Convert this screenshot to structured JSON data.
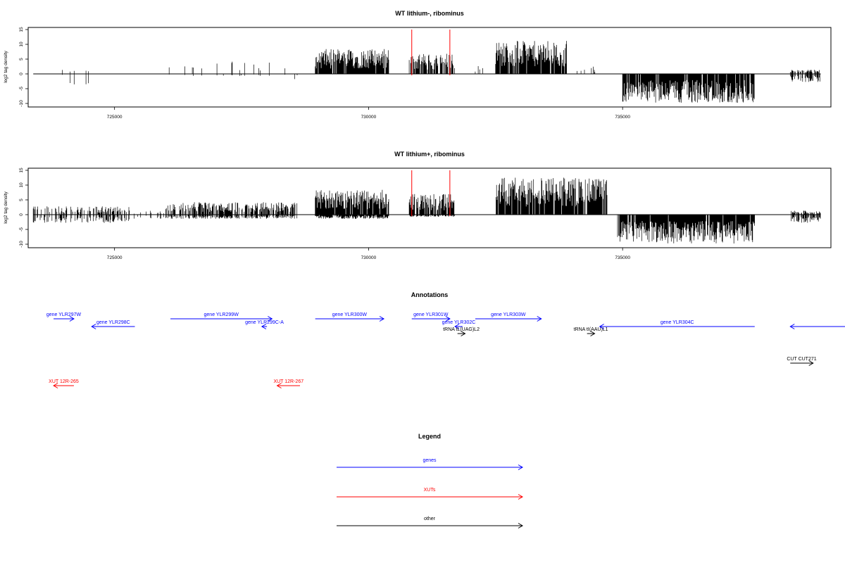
{
  "colors": {
    "gene": "#0000ff",
    "xut": "#ff0000",
    "other": "#000000",
    "marker": "#ff0000",
    "bars": "#000000"
  },
  "chart_data": [
    {
      "type": "bar",
      "title": "WT lithium-, ribominus",
      "ylabel": "log2 tag density",
      "xlim": [
        723300,
        739100
      ],
      "ylim": [
        -10,
        15
      ],
      "yticks": [
        -10,
        -5,
        0,
        5,
        10,
        15
      ],
      "xticks": [
        725000,
        730000,
        735000
      ],
      "grid": false,
      "markers": [
        730850,
        731600
      ],
      "segments": [
        {
          "start": 723400,
          "end": 724000,
          "density": 0.08,
          "pos": 3,
          "neg": 1
        },
        {
          "start": 724050,
          "end": 724600,
          "density": 0.08,
          "pos": 1,
          "neg": 3
        },
        {
          "start": 725900,
          "end": 728400,
          "density": 0.06,
          "pos": 3,
          "neg": 0.5
        },
        {
          "start": 728400,
          "end": 728600,
          "density": 0.05,
          "pos": 0.5,
          "neg": 1.5
        },
        {
          "start": 728950,
          "end": 730400,
          "density": 0.95,
          "pos": 6,
          "neg": 0
        },
        {
          "start": 730800,
          "end": 731700,
          "density": 0.8,
          "pos": 5,
          "neg": 0
        },
        {
          "start": 732100,
          "end": 732300,
          "density": 0.08,
          "pos": 2,
          "neg": 0
        },
        {
          "start": 732500,
          "end": 733900,
          "density": 1,
          "pos": 8,
          "neg": 0
        },
        {
          "start": 733900,
          "end": 734800,
          "density": 0.1,
          "pos": 2,
          "neg": 0
        },
        {
          "start": 735000,
          "end": 737600,
          "density": 1,
          "pos": 0,
          "neg": 7
        },
        {
          "start": 738300,
          "end": 738900,
          "density": 0.6,
          "pos": 1,
          "neg": 2
        }
      ]
    },
    {
      "type": "bar",
      "title": "WT lithium+, ribominus",
      "ylabel": "log2 tag density",
      "xlim": [
        723300,
        739100
      ],
      "ylim": [
        -10,
        15
      ],
      "yticks": [
        -10,
        -5,
        0,
        5,
        10,
        15
      ],
      "xticks": [
        725000,
        730000,
        735000
      ],
      "grid": false,
      "markers": [
        730850,
        731600
      ],
      "segments": [
        {
          "start": 723400,
          "end": 725300,
          "density": 0.45,
          "pos": 2,
          "neg": 2
        },
        {
          "start": 725300,
          "end": 726000,
          "density": 0.15,
          "pos": 1,
          "neg": 1
        },
        {
          "start": 726000,
          "end": 728600,
          "density": 0.7,
          "pos": 3,
          "neg": 1
        },
        {
          "start": 728950,
          "end": 730400,
          "density": 1,
          "pos": 6,
          "neg": 1
        },
        {
          "start": 730800,
          "end": 731700,
          "density": 0.85,
          "pos": 5,
          "neg": 0.5
        },
        {
          "start": 732500,
          "end": 734700,
          "density": 1,
          "pos": 9,
          "neg": 0
        },
        {
          "start": 734900,
          "end": 737600,
          "density": 1,
          "pos": 0,
          "neg": 7
        },
        {
          "start": 738300,
          "end": 738900,
          "density": 0.65,
          "pos": 1,
          "neg": 2
        }
      ]
    }
  ],
  "annotations": {
    "title": "Annotations",
    "items": [
      {
        "label": "gene YLR297W",
        "type": "gene",
        "start": 723800,
        "end": 724200,
        "dir": "right",
        "row": 1
      },
      {
        "label": "gene YLR298C",
        "type": "gene",
        "start": 724550,
        "end": 725400,
        "dir": "left",
        "row": 2
      },
      {
        "label": "gene YLR299W",
        "type": "gene",
        "start": 726100,
        "end": 728100,
        "dir": "right",
        "row": 1
      },
      {
        "label": "gene YLR299C-A",
        "type": "gene",
        "start": 727900,
        "end": 728000,
        "dir": "left",
        "row": 2
      },
      {
        "label": "gene YLR300W",
        "type": "gene",
        "start": 728950,
        "end": 730300,
        "dir": "right",
        "row": 1
      },
      {
        "label": "gene YLR301W",
        "type": "gene",
        "start": 730850,
        "end": 731600,
        "dir": "right",
        "row": 1
      },
      {
        "label": "gene YLR302C",
        "type": "gene",
        "start": 731700,
        "end": 731850,
        "dir": "left",
        "row": 2
      },
      {
        "label": "gene YLR303W",
        "type": "gene",
        "start": 732100,
        "end": 733400,
        "dir": "right",
        "row": 1
      },
      {
        "label": "tRNA tL(UAG)L2",
        "type": "other",
        "start": 731750,
        "end": 731900,
        "dir": "right",
        "row": 3
      },
      {
        "label": "tRNA tI(AAU)L1",
        "type": "other",
        "start": 734300,
        "end": 734450,
        "dir": "right",
        "row": 3
      },
      {
        "label": "gene YLR304C",
        "type": "gene",
        "start": 734550,
        "end": 737600,
        "dir": "left",
        "row": 2
      },
      {
        "label": "",
        "type": "gene",
        "start": 738300,
        "end": 739500,
        "dir": "left",
        "row": 2
      },
      {
        "label": "CUT CUT271",
        "type": "other",
        "start": 738300,
        "end": 738750,
        "dir": "right",
        "row": 5
      },
      {
        "label": "XUT 12R-265",
        "type": "xut",
        "start": 723800,
        "end": 724200,
        "dir": "left",
        "row": 6
      },
      {
        "label": "XUT 12R-267",
        "type": "xut",
        "start": 728200,
        "end": 728650,
        "dir": "left",
        "row": 6
      }
    ]
  },
  "legend": {
    "title": "Legend",
    "items": [
      {
        "label": "genes",
        "type": "gene"
      },
      {
        "label": "XUTs",
        "type": "xut"
      },
      {
        "label": "other",
        "type": "other"
      }
    ]
  }
}
